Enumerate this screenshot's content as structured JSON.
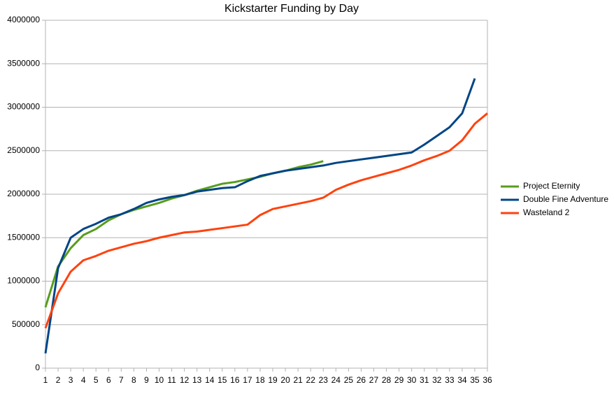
{
  "chart_data": {
    "type": "line",
    "title": "Kickstarter Funding by Day",
    "x": [
      1,
      2,
      3,
      4,
      5,
      6,
      7,
      8,
      9,
      10,
      11,
      12,
      13,
      14,
      15,
      16,
      17,
      18,
      19,
      20,
      21,
      22,
      23,
      24,
      25,
      26,
      27,
      28,
      29,
      30,
      31,
      32,
      33,
      34,
      35,
      36
    ],
    "xlim": [
      1,
      36
    ],
    "xticks": [
      1,
      2,
      3,
      4,
      5,
      6,
      7,
      8,
      9,
      10,
      11,
      12,
      13,
      14,
      15,
      16,
      17,
      18,
      19,
      20,
      21,
      22,
      23,
      24,
      25,
      26,
      27,
      28,
      29,
      30,
      31,
      32,
      33,
      34,
      35,
      36
    ],
    "ylim": [
      0,
      4000000
    ],
    "yticks": [
      0,
      500000,
      1000000,
      1500000,
      2000000,
      2500000,
      3000000,
      3500000,
      4000000
    ],
    "grid": true,
    "legend": "right",
    "series": [
      {
        "name": "Project Eternity",
        "color": "#579d1c",
        "values": [
          700000,
          1170000,
          1380000,
          1530000,
          1600000,
          1700000,
          1770000,
          1820000,
          1860000,
          1900000,
          1950000,
          1990000,
          2040000,
          2080000,
          2120000,
          2140000,
          2170000,
          2200000,
          2240000,
          2270000,
          2310000,
          2340000,
          2380000,
          null,
          null,
          null,
          null,
          null,
          null,
          null,
          null,
          null,
          null,
          null,
          null,
          null
        ]
      },
      {
        "name": "Double Fine Adventure",
        "color": "#004586",
        "values": [
          170000,
          1150000,
          1500000,
          1600000,
          1660000,
          1730000,
          1770000,
          1830000,
          1900000,
          1940000,
          1970000,
          1990000,
          2030000,
          2050000,
          2070000,
          2080000,
          2150000,
          2210000,
          2240000,
          2270000,
          2290000,
          2310000,
          2330000,
          2360000,
          2380000,
          2400000,
          2420000,
          2440000,
          2460000,
          2480000,
          2570000,
          2670000,
          2770000,
          2930000,
          3330000,
          null
        ]
      },
      {
        "name": "Wasteland 2",
        "color": "#ff420e",
        "values": [
          460000,
          860000,
          1110000,
          1240000,
          1290000,
          1350000,
          1390000,
          1430000,
          1460000,
          1500000,
          1530000,
          1560000,
          1570000,
          1590000,
          1610000,
          1630000,
          1650000,
          1760000,
          1830000,
          1860000,
          1890000,
          1920000,
          1960000,
          2050000,
          2110000,
          2160000,
          2200000,
          2240000,
          2280000,
          2330000,
          2390000,
          2440000,
          2500000,
          2620000,
          2810000,
          2930000
        ]
      }
    ]
  }
}
